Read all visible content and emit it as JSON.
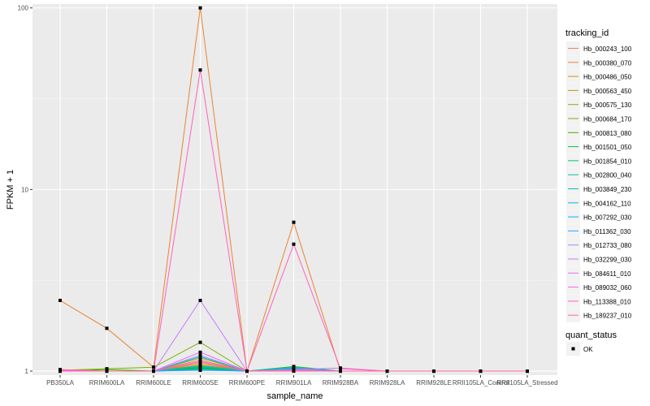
{
  "chart_data": {
    "type": "line",
    "title": "",
    "xlabel": "sample_name",
    "ylabel": "FPKM + 1",
    "y_scale": "log10",
    "ylim": [
      0.95,
      105
    ],
    "y_ticks": [
      1,
      10,
      100
    ],
    "y_tick_labels": [
      "1",
      "10",
      "100"
    ],
    "grid": true,
    "legend_placement": "right",
    "categories": [
      "PB350LA",
      "RRIM600LA",
      "RRIM600LE",
      "RRIM600SE",
      "RRIM600PE",
      "RRIM901LA",
      "RRIM928BA",
      "RRIM928LA",
      "RRIM928LE",
      "RRII105LA_Control",
      "RRII105LA_Stressed"
    ],
    "legend_title": "tracking_id",
    "series": [
      {
        "name": "Hb_000243_100",
        "color": "#F8766D",
        "values": [
          1,
          1,
          1,
          1.15,
          1,
          1.02,
          1,
          1,
          1,
          1,
          1
        ]
      },
      {
        "name": "Hb_000380_070",
        "color": "#EA8331",
        "values": [
          2.45,
          1.72,
          1.05,
          100,
          1,
          6.6,
          1,
          1,
          1,
          1,
          1
        ]
      },
      {
        "name": "Hb_000486_050",
        "color": "#D89000",
        "values": [
          1,
          1,
          1,
          1.08,
          1,
          1.01,
          1,
          1,
          1,
          1,
          1
        ]
      },
      {
        "name": "Hb_000563_450",
        "color": "#C09B00",
        "values": [
          1,
          1,
          1,
          1.1,
          1,
          1.02,
          1,
          1,
          1,
          1,
          1
        ]
      },
      {
        "name": "Hb_000575_130",
        "color": "#A3A500",
        "values": [
          1,
          1,
          1,
          1.18,
          1,
          1.01,
          1,
          1,
          1,
          1,
          1
        ]
      },
      {
        "name": "Hb_000684_170",
        "color": "#7CAE00",
        "values": [
          1.01,
          1.03,
          1.05,
          1.44,
          1,
          1.03,
          1,
          1,
          1,
          1,
          1
        ]
      },
      {
        "name": "Hb_000813_080",
        "color": "#39B600",
        "values": [
          1,
          1.02,
          1,
          1.05,
          1,
          1.06,
          1,
          1,
          1,
          1,
          1
        ]
      },
      {
        "name": "Hb_001501_050",
        "color": "#00BB4E",
        "values": [
          1,
          1,
          1,
          1.04,
          1,
          1.05,
          1,
          1,
          1,
          1,
          1
        ]
      },
      {
        "name": "Hb_001854_010",
        "color": "#00BF7D",
        "values": [
          1,
          1,
          1,
          1.03,
          1,
          1.04,
          1,
          1,
          1,
          1,
          1
        ]
      },
      {
        "name": "Hb_002800_040",
        "color": "#00C1A3",
        "values": [
          1,
          1,
          1,
          1.06,
          1,
          1.03,
          1,
          1,
          1,
          1,
          1
        ]
      },
      {
        "name": "Hb_003849_230",
        "color": "#00BFC4",
        "values": [
          1,
          1,
          1,
          1.2,
          1,
          1.05,
          1,
          1,
          1,
          1,
          1
        ]
      },
      {
        "name": "Hb_004162_110",
        "color": "#00BAE0",
        "values": [
          1,
          1,
          1,
          1.07,
          1,
          1.04,
          1,
          1,
          1,
          1,
          1
        ]
      },
      {
        "name": "Hb_007292_030",
        "color": "#00B0F6",
        "values": [
          1,
          1,
          1,
          1.02,
          1,
          1.02,
          1,
          1,
          1,
          1,
          1
        ]
      },
      {
        "name": "Hb_011362_030",
        "color": "#35A2FF",
        "values": [
          1,
          1,
          1,
          1.01,
          1,
          1.01,
          1,
          1,
          1,
          1,
          1
        ]
      },
      {
        "name": "Hb_012733_080",
        "color": "#9590FF",
        "values": [
          1,
          1,
          1,
          1.22,
          1,
          1.02,
          1,
          1,
          1,
          1,
          1
        ]
      },
      {
        "name": "Hb_032299_030",
        "color": "#C77CFF",
        "values": [
          1,
          1,
          1,
          2.45,
          1,
          1.01,
          1,
          1,
          1,
          1,
          1
        ]
      },
      {
        "name": "Hb_084611_010",
        "color": "#E76BF3",
        "values": [
          1,
          1,
          1,
          1.27,
          1,
          1.02,
          1.04,
          1,
          1,
          1,
          1
        ]
      },
      {
        "name": "Hb_089032_060",
        "color": "#FA62DB",
        "values": [
          1,
          1,
          1,
          1.13,
          1,
          1.01,
          1,
          1,
          1,
          1,
          1
        ]
      },
      {
        "name": "Hb_113388_010",
        "color": "#FF62BC",
        "values": [
          1.01,
          1,
          1,
          45.5,
          1,
          5.0,
          1.03,
          1,
          1,
          1,
          1
        ]
      },
      {
        "name": "Hb_189237_010",
        "color": "#FF6C91",
        "values": [
          1.02,
          1,
          1,
          1.12,
          1,
          1,
          1,
          1,
          1,
          1,
          1
        ]
      }
    ],
    "shape_legend": {
      "title": "quant_status",
      "entries": [
        "OK"
      ]
    }
  }
}
